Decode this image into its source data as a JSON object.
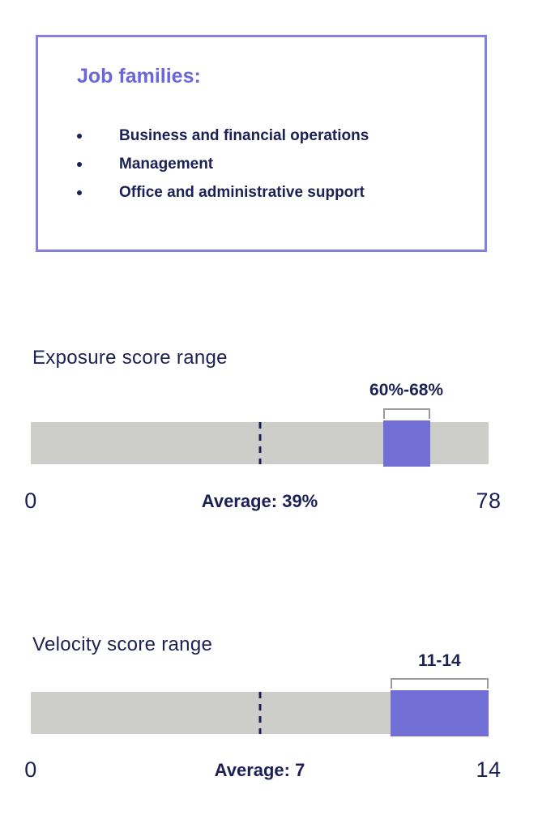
{
  "colors": {
    "heading_purple": "#6B66D9",
    "card_border_purple": "#8580DC",
    "bar_gray": "#CDCDCA",
    "range_purple": "#716FD6",
    "navy_text": "#1B2155",
    "bracket_gray": "#9B9B9B"
  },
  "job_families_box": {
    "title": "Job families:",
    "items": [
      "Business and financial operations",
      "Management",
      "Office and administrative support"
    ]
  },
  "chart_data": [
    {
      "type": "bar",
      "title": "Exposure score range",
      "range_label": "60%-68%",
      "range": [
        60,
        68
      ],
      "average": 39,
      "average_label": "Average: 39%",
      "axis_min": 0,
      "axis_max": 78,
      "min_label": "0",
      "max_label": "78",
      "xlim": [
        0,
        78
      ],
      "legend": "none",
      "grid": "off"
    },
    {
      "type": "bar",
      "title": "Velocity score range",
      "range_label": "11-14",
      "range": [
        11,
        14
      ],
      "average": 7,
      "average_label": "Average: 7",
      "axis_min": 0,
      "axis_max": 14,
      "min_label": "0",
      "max_label": "14",
      "xlim": [
        0,
        14
      ],
      "legend": "none",
      "grid": "off"
    }
  ]
}
